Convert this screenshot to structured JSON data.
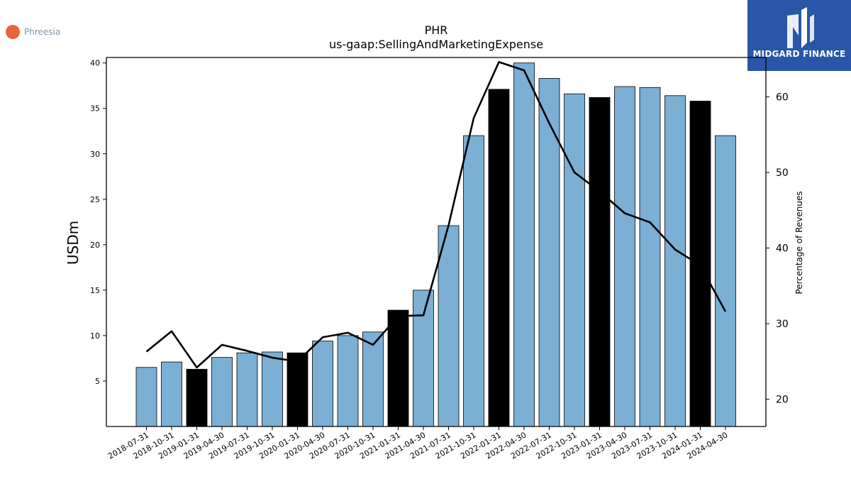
{
  "company_logo": {
    "name": "Phreesia",
    "color": "#e8643c"
  },
  "brand_logo": {
    "name": "MIDGARD FINANCE",
    "color": "#2a56a8"
  },
  "chart_data": {
    "type": "bar",
    "title": "PHR",
    "subtitle": "us-gaap:SellingAndMarketingExpense",
    "ylabel": "USDm",
    "y2label": "Percentage of Revenues",
    "ylim": [
      0,
      40.6
    ],
    "y2lim": [
      16.4,
      65.2
    ],
    "yticks": [
      5,
      10,
      15,
      20,
      25,
      30,
      35,
      40
    ],
    "y2ticks": [
      20,
      30,
      40,
      50,
      60
    ],
    "categories": [
      "2018-07-31",
      "2018-10-31",
      "2019-01-31",
      "2019-04-30",
      "2019-07-31",
      "2019-10-31",
      "2020-01-31",
      "2020-04-30",
      "2020-07-31",
      "2020-10-31",
      "2021-01-31",
      "2021-04-30",
      "2021-07-31",
      "2021-10-31",
      "2022-01-31",
      "2022-04-30",
      "2022-07-31",
      "2022-10-31",
      "2023-01-31",
      "2023-04-30",
      "2023-07-31",
      "2023-10-31",
      "2024-01-31",
      "2024-04-30"
    ],
    "series": [
      {
        "type": "bar",
        "axis": "left",
        "values": [
          6.5,
          7.1,
          6.3,
          7.6,
          8.1,
          8.2,
          8.1,
          9.4,
          10.0,
          10.4,
          12.8,
          15.0,
          22.1,
          32.0,
          37.1,
          40.0,
          38.3,
          36.6,
          36.2,
          37.4,
          37.3,
          36.4,
          35.8,
          32.0
        ],
        "colors": [
          "#7bafd4",
          "#7bafd4",
          "#000000",
          "#7bafd4",
          "#7bafd4",
          "#7bafd4",
          "#000000",
          "#7bafd4",
          "#7bafd4",
          "#7bafd4",
          "#000000",
          "#7bafd4",
          "#7bafd4",
          "#7bafd4",
          "#000000",
          "#7bafd4",
          "#7bafd4",
          "#7bafd4",
          "#000000",
          "#7bafd4",
          "#7bafd4",
          "#7bafd4",
          "#000000",
          "#7bafd4"
        ]
      },
      {
        "type": "line",
        "axis": "right",
        "color": "#000000",
        "values": [
          26.3,
          29.0,
          24.2,
          27.2,
          26.4,
          25.5,
          25.0,
          28.2,
          28.8,
          27.2,
          31.0,
          31.1,
          43.0,
          57.2,
          64.6,
          63.5,
          56.5,
          50.0,
          47.5,
          44.6,
          43.4,
          39.8,
          37.7,
          31.6
        ]
      }
    ],
    "grid": false
  }
}
